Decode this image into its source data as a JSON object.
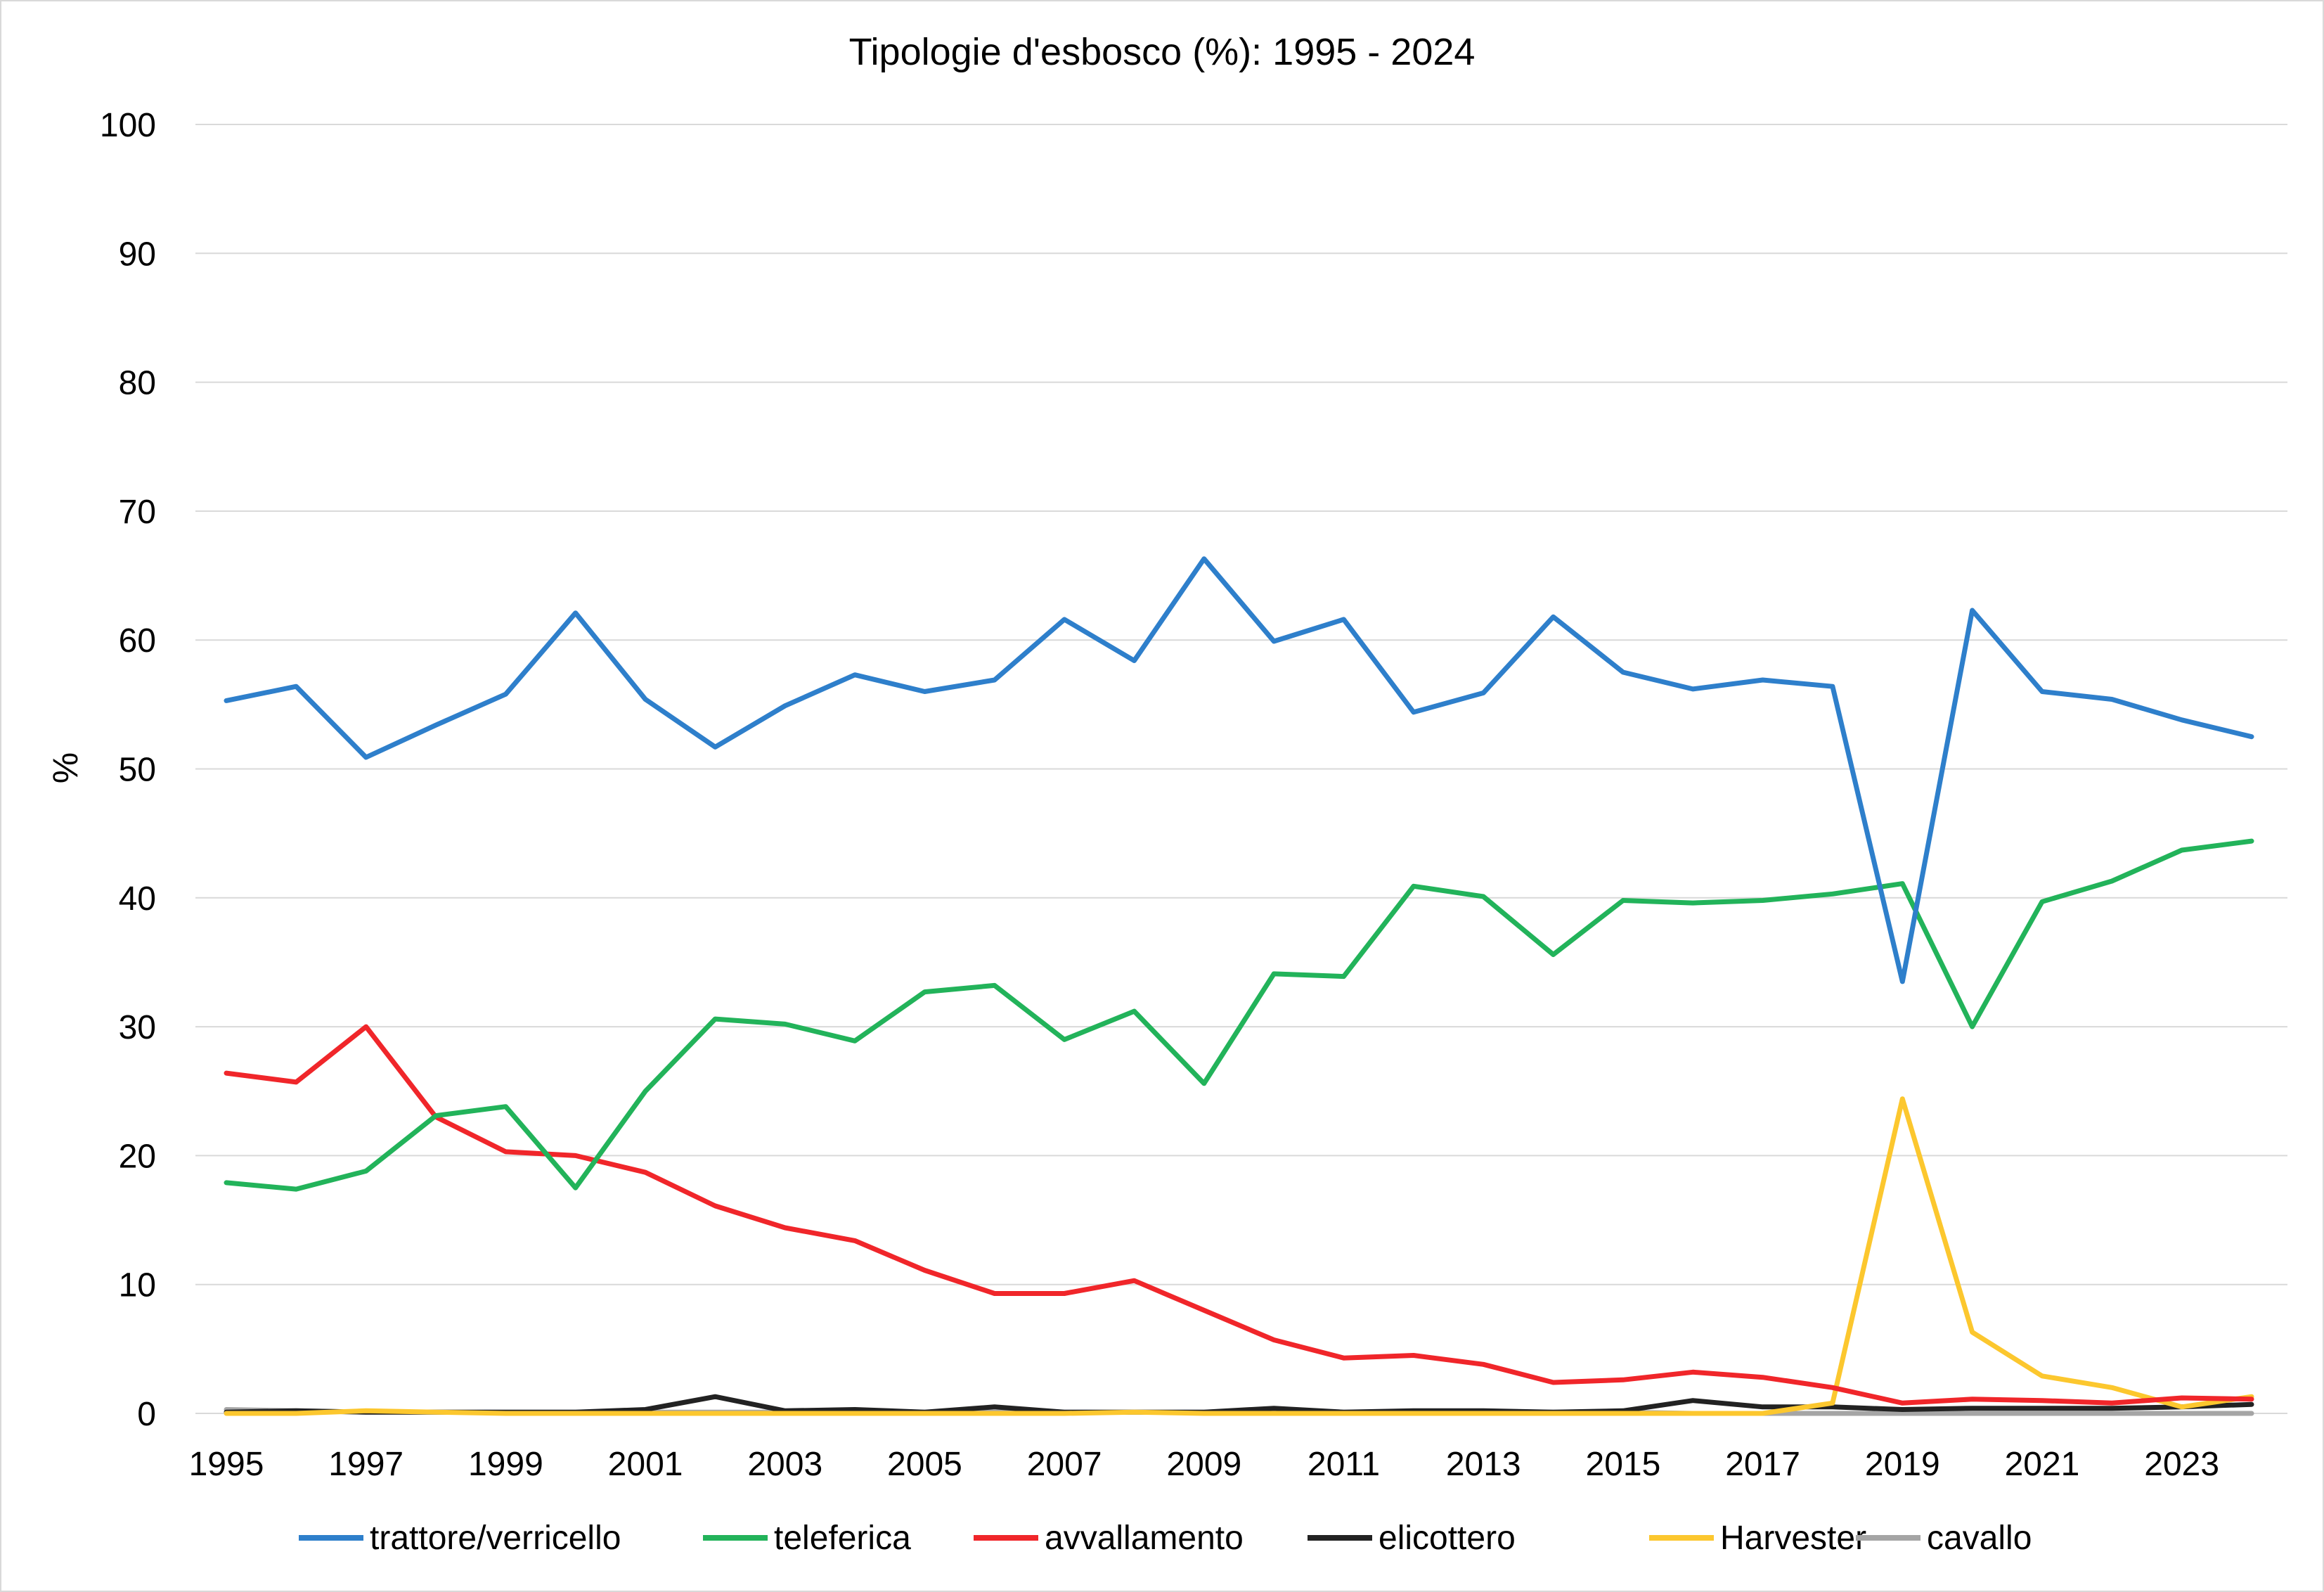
{
  "chart_data": {
    "type": "line",
    "title": "Tipologie d'esbosco (%): 1995 - 2024",
    "xlabel": "",
    "ylabel": "%",
    "ylim": [
      0,
      100
    ],
    "yticks": [
      0,
      10,
      20,
      30,
      40,
      50,
      60,
      70,
      80,
      90,
      100
    ],
    "x": [
      1995,
      1996,
      1997,
      1998,
      1999,
      2000,
      2001,
      2002,
      2003,
      2004,
      2005,
      2006,
      2007,
      2008,
      2009,
      2010,
      2011,
      2012,
      2013,
      2014,
      2015,
      2016,
      2017,
      2018,
      2019,
      2020,
      2021,
      2022,
      2023,
      2024
    ],
    "xticks": [
      "1995",
      "1997",
      "1999",
      "2001",
      "2003",
      "2005",
      "2007",
      "2009",
      "2011",
      "2013",
      "2015",
      "2017",
      "2019",
      "2021",
      "2023"
    ],
    "grid": true,
    "legend_position": "bottom",
    "series": [
      {
        "name": "trattore/verricello",
        "color": "#2E7FCB",
        "values": [
          55.3,
          56.4,
          50.9,
          53.4,
          55.8,
          62.1,
          55.4,
          51.7,
          54.9,
          57.3,
          56.0,
          56.9,
          61.6,
          58.4,
          66.3,
          59.9,
          61.6,
          54.4,
          55.9,
          61.8,
          57.5,
          56.2,
          56.9,
          56.4,
          33.5,
          62.3,
          56.0,
          55.4,
          53.8,
          52.5
        ]
      },
      {
        "name": "teleferica",
        "color": "#22B35A",
        "values": [
          17.9,
          17.4,
          18.8,
          23.1,
          23.8,
          17.5,
          25.0,
          30.6,
          30.2,
          28.9,
          32.7,
          33.2,
          29.0,
          31.2,
          25.6,
          34.1,
          33.9,
          40.9,
          40.1,
          35.6,
          39.8,
          39.6,
          39.8,
          40.3,
          41.1,
          30.0,
          39.7,
          41.3,
          43.7,
          44.4
        ]
      },
      {
        "name": "avvallamento",
        "color": "#F0262A",
        "values": [
          26.4,
          25.7,
          30.0,
          23.0,
          20.3,
          20.0,
          18.7,
          16.1,
          14.4,
          13.4,
          11.1,
          9.3,
          9.3,
          10.3,
          8.0,
          5.7,
          4.3,
          4.5,
          3.8,
          2.4,
          2.6,
          3.2,
          2.8,
          2.0,
          0.8,
          1.1,
          1.0,
          0.8,
          1.2,
          1.1
        ]
      },
      {
        "name": "elicottero",
        "color": "#222222",
        "values": [
          0.1,
          0.2,
          0.1,
          0.1,
          0.1,
          0.1,
          0.3,
          1.3,
          0.2,
          0.3,
          0.1,
          0.5,
          0.1,
          0.1,
          0.1,
          0.4,
          0.1,
          0.2,
          0.2,
          0.1,
          0.2,
          1.0,
          0.5,
          0.5,
          0.3,
          0.4,
          0.4,
          0.4,
          0.5,
          0.7
        ]
      },
      {
        "name": "Harvester",
        "color": "#FCC72E",
        "values": [
          0.0,
          0.0,
          0.2,
          0.1,
          0.0,
          0.0,
          0.0,
          0.0,
          0.0,
          0.0,
          0.0,
          0.0,
          0.0,
          0.1,
          0.0,
          0.0,
          0.0,
          0.0,
          0.0,
          0.0,
          0.0,
          0.0,
          0.0,
          0.8,
          24.4,
          6.3,
          2.9,
          2.0,
          0.5,
          1.3
        ]
      },
      {
        "name": "cavallo",
        "color": "#A5A5A5",
        "values": [
          0.3,
          0.2,
          0.1,
          0.1,
          0.1,
          0.1,
          0.1,
          0.1,
          0.1,
          0.1,
          0.1,
          0.1,
          0.1,
          0.1,
          0.1,
          0.1,
          0.1,
          0.1,
          0.1,
          0.1,
          0.1,
          0.0,
          0.0,
          0.0,
          0.0,
          0.0,
          0.0,
          0.0,
          0.0,
          0.0
        ]
      }
    ]
  }
}
